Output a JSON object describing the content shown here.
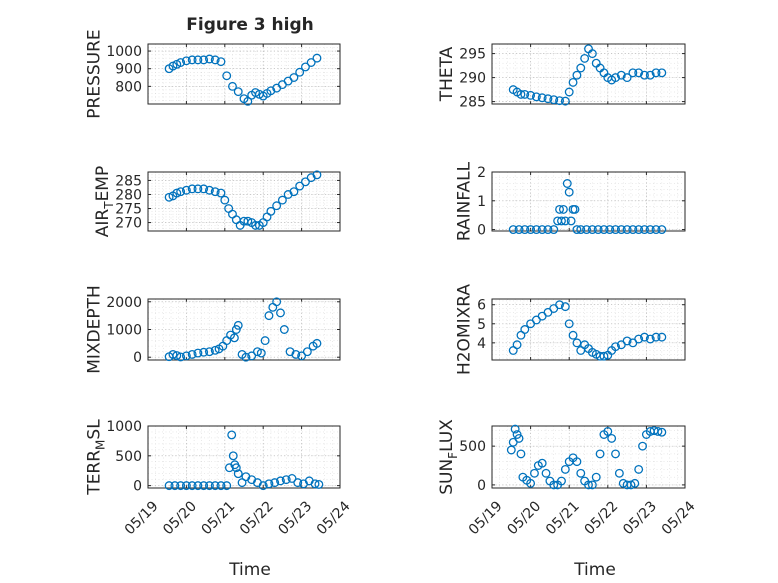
{
  "page": {
    "title": "Figure 3 high",
    "marker_color": "#0072BD"
  },
  "chart_data": [
    {
      "type": "scatter",
      "ylabel": "PRESSURE",
      "xlim": [
        0,
        5
      ],
      "ylim": [
        700,
        1040
      ],
      "yticks": [
        800,
        900,
        1000
      ],
      "xticks": [
        0,
        1,
        2,
        3,
        4,
        5
      ],
      "xticklabels": [
        "05/19",
        "05/20",
        "05/21",
        "05/22",
        "05/23",
        "05/24"
      ],
      "x": [
        0.55,
        0.65,
        0.75,
        0.85,
        1.0,
        1.15,
        1.3,
        1.45,
        1.6,
        1.75,
        1.9,
        2.05,
        2.2,
        2.35,
        2.5,
        2.6,
        2.7,
        2.8,
        2.9,
        3.0,
        3.1,
        3.2,
        3.35,
        3.5,
        3.65,
        3.8,
        3.95,
        4.1,
        4.25,
        4.4
      ],
      "y": [
        900,
        915,
        925,
        935,
        945,
        950,
        950,
        950,
        955,
        950,
        940,
        860,
        800,
        770,
        730,
        715,
        750,
        765,
        755,
        745,
        760,
        775,
        790,
        810,
        830,
        850,
        880,
        910,
        935,
        960
      ]
    },
    {
      "type": "scatter",
      "ylabel": "THETA",
      "xlim": [
        0,
        5
      ],
      "ylim": [
        284.5,
        297
      ],
      "yticks": [
        285,
        290,
        295
      ],
      "xticks": [
        0,
        1,
        2,
        3,
        4,
        5
      ],
      "xticklabels": [
        "05/19",
        "05/20",
        "05/21",
        "05/22",
        "05/23",
        "05/24"
      ],
      "x": [
        0.55,
        0.65,
        0.75,
        0.85,
        1.0,
        1.15,
        1.3,
        1.45,
        1.6,
        1.75,
        1.9,
        2.0,
        2.1,
        2.2,
        2.3,
        2.4,
        2.5,
        2.6,
        2.7,
        2.8,
        2.9,
        3.0,
        3.1,
        3.2,
        3.35,
        3.5,
        3.65,
        3.8,
        3.95,
        4.1,
        4.25,
        4.4
      ],
      "y": [
        287.5,
        287,
        286.5,
        286.5,
        286.3,
        286,
        285.8,
        285.6,
        285.4,
        285.2,
        285.1,
        287,
        289,
        290.5,
        292,
        294,
        296,
        295,
        293,
        292,
        291,
        290,
        289.5,
        290,
        290.5,
        290,
        291,
        291,
        290.5,
        290.5,
        291,
        291
      ]
    },
    {
      "type": "scatter",
      "ylabel": "AIR_TEMP",
      "xlim": [
        0,
        5
      ],
      "ylim": [
        267,
        288
      ],
      "yticks": [
        270,
        275,
        280,
        285
      ],
      "xticks": [
        0,
        1,
        2,
        3,
        4,
        5
      ],
      "xticklabels": [
        "05/19",
        "05/20",
        "05/21",
        "05/22",
        "05/23",
        "05/24"
      ],
      "x": [
        0.55,
        0.65,
        0.75,
        0.85,
        1.0,
        1.15,
        1.3,
        1.45,
        1.6,
        1.75,
        1.9,
        2.0,
        2.1,
        2.2,
        2.3,
        2.4,
        2.5,
        2.6,
        2.7,
        2.8,
        2.9,
        3.0,
        3.1,
        3.2,
        3.35,
        3.5,
        3.65,
        3.8,
        3.95,
        4.1,
        4.25,
        4.4
      ],
      "y": [
        279,
        279.5,
        280.5,
        281,
        281.5,
        282,
        282,
        282,
        281.5,
        281,
        280.5,
        278,
        275,
        273,
        271,
        269,
        270.5,
        270.5,
        270,
        269,
        269,
        270,
        272,
        274,
        276,
        278,
        280,
        281,
        283,
        284.5,
        286,
        287
      ]
    },
    {
      "type": "scatter",
      "ylabel": "RAINFALL",
      "xlim": [
        0,
        5
      ],
      "ylim": [
        -0.05,
        2
      ],
      "yticks": [
        0,
        1,
        2
      ],
      "xticks": [
        0,
        1,
        2,
        3,
        4,
        5
      ],
      "xticklabels": [
        "05/19",
        "05/20",
        "05/21",
        "05/22",
        "05/23",
        "05/24"
      ],
      "x": [
        0.55,
        0.7,
        0.85,
        1.0,
        1.15,
        1.3,
        1.45,
        1.6,
        1.7,
        1.75,
        1.8,
        1.85,
        1.9,
        1.95,
        2.0,
        2.05,
        2.1,
        2.15,
        2.2,
        2.3,
        2.45,
        2.6,
        2.75,
        2.9,
        3.05,
        3.2,
        3.35,
        3.5,
        3.65,
        3.8,
        3.95,
        4.1,
        4.25,
        4.4
      ],
      "y": [
        0,
        0,
        0,
        0,
        0,
        0,
        0,
        0,
        0.3,
        0.7,
        0.3,
        0.7,
        0.3,
        1.6,
        1.3,
        0.3,
        0.7,
        0.7,
        0,
        0,
        0,
        0,
        0,
        0,
        0,
        0,
        0,
        0,
        0,
        0,
        0,
        0,
        0,
        0
      ]
    },
    {
      "type": "scatter",
      "ylabel": "MIXDEPTH",
      "xlim": [
        0,
        5
      ],
      "ylim": [
        -100,
        2100
      ],
      "yticks": [
        0,
        1000,
        2000
      ],
      "xticks": [
        0,
        1,
        2,
        3,
        4,
        5
      ],
      "xticklabels": [
        "05/19",
        "05/20",
        "05/21",
        "05/22",
        "05/23",
        "05/24"
      ],
      "x": [
        0.55,
        0.65,
        0.75,
        0.85,
        1.0,
        1.15,
        1.3,
        1.45,
        1.6,
        1.75,
        1.85,
        1.95,
        2.05,
        2.15,
        2.25,
        2.3,
        2.35,
        2.45,
        2.55,
        2.7,
        2.85,
        2.95,
        3.05,
        3.15,
        3.25,
        3.35,
        3.45,
        3.55,
        3.7,
        3.85,
        4.0,
        4.15,
        4.3,
        4.4
      ],
      "y": [
        20,
        100,
        60,
        10,
        50,
        100,
        150,
        180,
        200,
        250,
        300,
        400,
        600,
        800,
        700,
        1000,
        1150,
        100,
        0,
        50,
        200,
        150,
        600,
        1500,
        1800,
        2000,
        1600,
        1000,
        200,
        100,
        50,
        200,
        400,
        500
      ]
    },
    {
      "type": "scatter",
      "ylabel": "H2OMIXRA",
      "xlim": [
        0,
        5
      ],
      "ylim": [
        3.1,
        6.3
      ],
      "yticks": [
        4,
        5,
        6
      ],
      "xticks": [
        0,
        1,
        2,
        3,
        4,
        5
      ],
      "xticklabels": [
        "05/19",
        "05/20",
        "05/21",
        "05/22",
        "05/23",
        "05/24"
      ],
      "x": [
        0.55,
        0.65,
        0.75,
        0.85,
        1.0,
        1.15,
        1.3,
        1.45,
        1.6,
        1.75,
        1.9,
        2.0,
        2.1,
        2.2,
        2.3,
        2.4,
        2.5,
        2.6,
        2.7,
        2.8,
        2.9,
        3.0,
        3.1,
        3.2,
        3.35,
        3.5,
        3.65,
        3.8,
        3.95,
        4.1,
        4.25,
        4.4
      ],
      "y": [
        3.6,
        3.9,
        4.4,
        4.7,
        5.0,
        5.2,
        5.4,
        5.6,
        5.8,
        6.0,
        5.9,
        5.0,
        4.4,
        4.0,
        3.6,
        3.9,
        3.7,
        3.5,
        3.4,
        3.3,
        3.3,
        3.35,
        3.6,
        3.8,
        3.9,
        4.1,
        4.0,
        4.2,
        4.3,
        4.2,
        4.3,
        4.3
      ]
    },
    {
      "type": "scatter",
      "ylabel": "TERR_MSL",
      "xlim": [
        0,
        5
      ],
      "ylim": [
        -40,
        1000
      ],
      "yticks": [
        0,
        500,
        1000
      ],
      "xticks": [
        0,
        1,
        2,
        3,
        4,
        5
      ],
      "xticklabels": [
        "05/19",
        "05/20",
        "05/21",
        "05/22",
        "05/23",
        "05/24"
      ],
      "x": [
        0.55,
        0.7,
        0.85,
        1.0,
        1.15,
        1.3,
        1.45,
        1.6,
        1.75,
        1.9,
        2.05,
        2.12,
        2.18,
        2.22,
        2.26,
        2.3,
        2.35,
        2.45,
        2.55,
        2.7,
        2.85,
        3.0,
        3.15,
        3.3,
        3.45,
        3.6,
        3.75,
        3.9,
        4.05,
        4.2,
        4.35,
        4.45
      ],
      "y": [
        0,
        0,
        0,
        0,
        0,
        0,
        0,
        0,
        0,
        0,
        0,
        300,
        850,
        500,
        350,
        300,
        200,
        50,
        150,
        100,
        50,
        0,
        30,
        50,
        80,
        100,
        120,
        50,
        30,
        80,
        30,
        20
      ]
    },
    {
      "type": "scatter",
      "ylabel": "SUN_FLUX",
      "xlim": [
        0,
        5
      ],
      "ylim": [
        -40,
        760
      ],
      "yticks": [
        0,
        500
      ],
      "xticks": [
        0,
        1,
        2,
        3,
        4,
        5
      ],
      "xticklabels": [
        "05/19",
        "05/20",
        "05/21",
        "05/22",
        "05/23",
        "05/24"
      ],
      "x": [
        0.5,
        0.55,
        0.6,
        0.65,
        0.7,
        0.75,
        0.8,
        0.9,
        1.0,
        1.1,
        1.2,
        1.3,
        1.4,
        1.5,
        1.6,
        1.7,
        1.8,
        1.9,
        2.0,
        2.1,
        2.2,
        2.3,
        2.4,
        2.5,
        2.6,
        2.7,
        2.8,
        2.9,
        3.0,
        3.1,
        3.2,
        3.3,
        3.4,
        3.5,
        3.6,
        3.7,
        3.8,
        3.9,
        4.0,
        4.1,
        4.2,
        4.3,
        4.4
      ],
      "y": [
        450,
        550,
        720,
        650,
        600,
        400,
        100,
        60,
        20,
        150,
        250,
        280,
        150,
        50,
        0,
        0,
        50,
        200,
        300,
        350,
        300,
        150,
        50,
        0,
        0,
        100,
        400,
        650,
        690,
        600,
        400,
        150,
        20,
        0,
        0,
        20,
        200,
        500,
        650,
        690,
        700,
        690,
        680
      ]
    }
  ],
  "xlabels": [
    "Time",
    "Time"
  ]
}
